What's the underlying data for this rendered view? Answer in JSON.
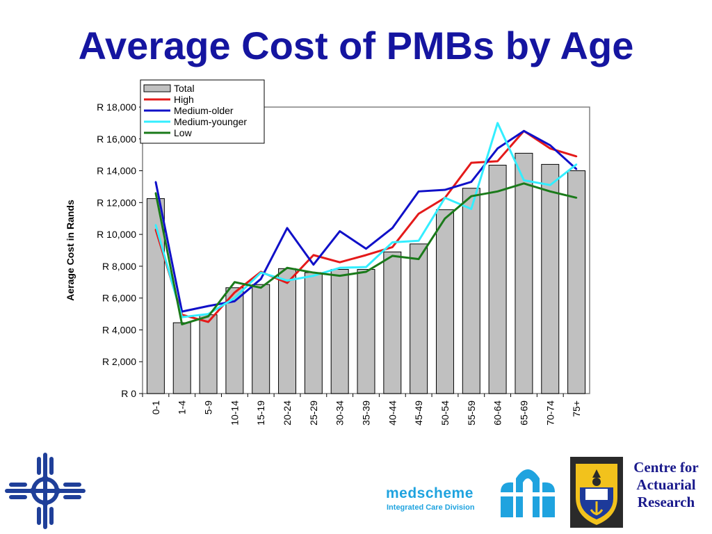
{
  "page": {
    "title": "Average Cost of PMBs by Age"
  },
  "chart_data": {
    "type": "bar",
    "title": "Average Cost of PMBs by Age",
    "ylabel": "Aerage Cost in Rands",
    "xlabel": "",
    "categories": [
      "0-1",
      "1-4",
      "5-9",
      "10-14",
      "15-19",
      "20-24",
      "25-29",
      "30-34",
      "35-39",
      "40-44",
      "45-49",
      "50-54",
      "55-59",
      "60-64",
      "65-69",
      "70-74",
      "75+"
    ],
    "ylim": [
      0,
      18000
    ],
    "yticks": [
      0,
      2000,
      4000,
      6000,
      8000,
      10000,
      12000,
      14000,
      16000,
      18000
    ],
    "ytick_labels": [
      "R 0",
      "R 2,000",
      "R 4,000",
      "R 6,000",
      "R 8,000",
      "R 10,000",
      "R 12,000",
      "R 14,000",
      "R 16,000",
      "R 18,000"
    ],
    "grid": false,
    "legend_position": "top-left",
    "series": [
      {
        "name": "Total",
        "kind": "bar",
        "color": "#c0c0c0",
        "values": [
          12250,
          4450,
          4950,
          6650,
          6850,
          7850,
          7600,
          7800,
          7800,
          8900,
          9400,
          11550,
          12900,
          14350,
          15100,
          14400,
          14000
        ]
      },
      {
        "name": "High",
        "kind": "line",
        "color": "#e41a1a",
        "values": [
          10300,
          4950,
          4500,
          6350,
          7650,
          6950,
          8700,
          8250,
          8700,
          9200,
          11300,
          12300,
          14500,
          14600,
          16500,
          15400,
          14900
        ]
      },
      {
        "name": "Medium-older",
        "kind": "line",
        "color": "#1010c8",
        "values": [
          13300,
          5150,
          5500,
          5800,
          7200,
          10400,
          8100,
          10200,
          9100,
          10400,
          12700,
          12800,
          13300,
          15400,
          16500,
          15600,
          14100
        ]
      },
      {
        "name": "Medium-younger",
        "kind": "line",
        "color": "#33eeff",
        "values": [
          10600,
          4800,
          5000,
          6000,
          7600,
          7100,
          7400,
          7900,
          7950,
          9500,
          9600,
          12300,
          11600,
          17000,
          13400,
          13100,
          14400
        ]
      },
      {
        "name": "Low",
        "kind": "line",
        "color": "#1a7a1a",
        "values": [
          12600,
          4350,
          4850,
          7000,
          6650,
          7900,
          7600,
          7400,
          7650,
          8650,
          8450,
          11000,
          12400,
          12700,
          13200,
          12700,
          12300
        ]
      }
    ]
  },
  "logos": {
    "medscheme": {
      "name": "medscheme",
      "subtitle": "Integrated Care Division"
    },
    "car": {
      "line1": "Centre for",
      "line2": "Actuarial",
      "line3": "Research"
    }
  }
}
